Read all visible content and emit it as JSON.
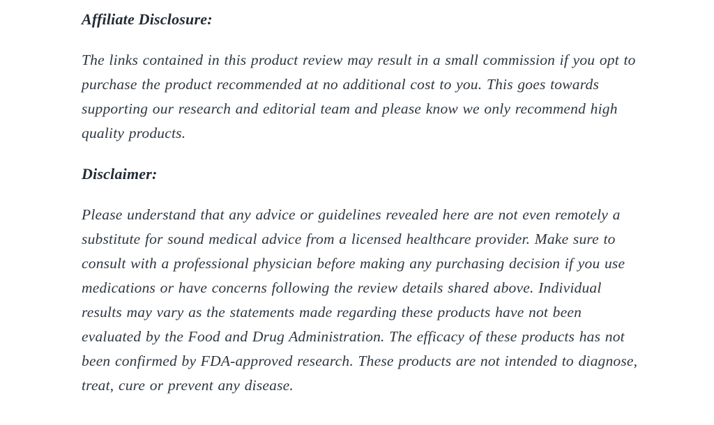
{
  "page": {
    "background_color": "#ffffff",
    "text_color": "#2e3740",
    "heading_color": "#222b35"
  },
  "sections": [
    {
      "heading": "Affiliate Disclosure:",
      "body": "The links contained in this product review may result in a small commission if you opt to purchase the product recommended at no additional cost to you. This goes towards supporting our research and editorial team and please know we only recommend high quality products."
    },
    {
      "heading": "Disclaimer:",
      "body": "Please understand that any advice or guidelines revealed here are not even remotely a substitute for sound medical advice from a licensed healthcare provider. Make sure to consult with a professional physician before making any purchasing decision if you use medications or have concerns following the review details shared above. Individual results may vary as the statements made regarding these products have not been evaluated by the Food and Drug Administration. The efficacy of these products has not been confirmed by FDA-approved research. These products are not intended to diagnose, treat, cure or prevent any disease."
    }
  ]
}
